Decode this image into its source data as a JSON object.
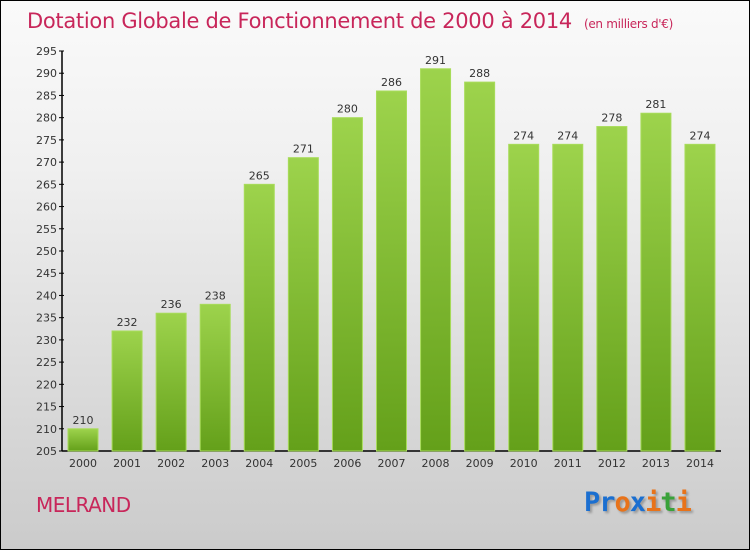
{
  "chart_data": {
    "type": "bar",
    "title": "Dotation Globale de Fonctionnement de 2000 à 2014",
    "unit": "(en milliers d'€)",
    "categories": [
      "2000",
      "2001",
      "2002",
      "2003",
      "2004",
      "2005",
      "2006",
      "2007",
      "2008",
      "2009",
      "2010",
      "2011",
      "2012",
      "2013",
      "2014"
    ],
    "values": [
      210,
      232,
      236,
      238,
      265,
      271,
      280,
      286,
      291,
      288,
      274,
      274,
      278,
      281,
      274
    ],
    "xlabel": "",
    "ylabel": "",
    "ylim": [
      205,
      295
    ],
    "ytick_step": 5,
    "bar_color": "#7fbf2a",
    "grid": false
  },
  "commune": "MELRAND",
  "logo": {
    "text": "Proxiti",
    "colors": [
      "#1b6fd0",
      "#1b6fd0",
      "#e8731a",
      "#1b6fd0",
      "#e8731a",
      "#3aa23a",
      "#e8731a"
    ]
  }
}
